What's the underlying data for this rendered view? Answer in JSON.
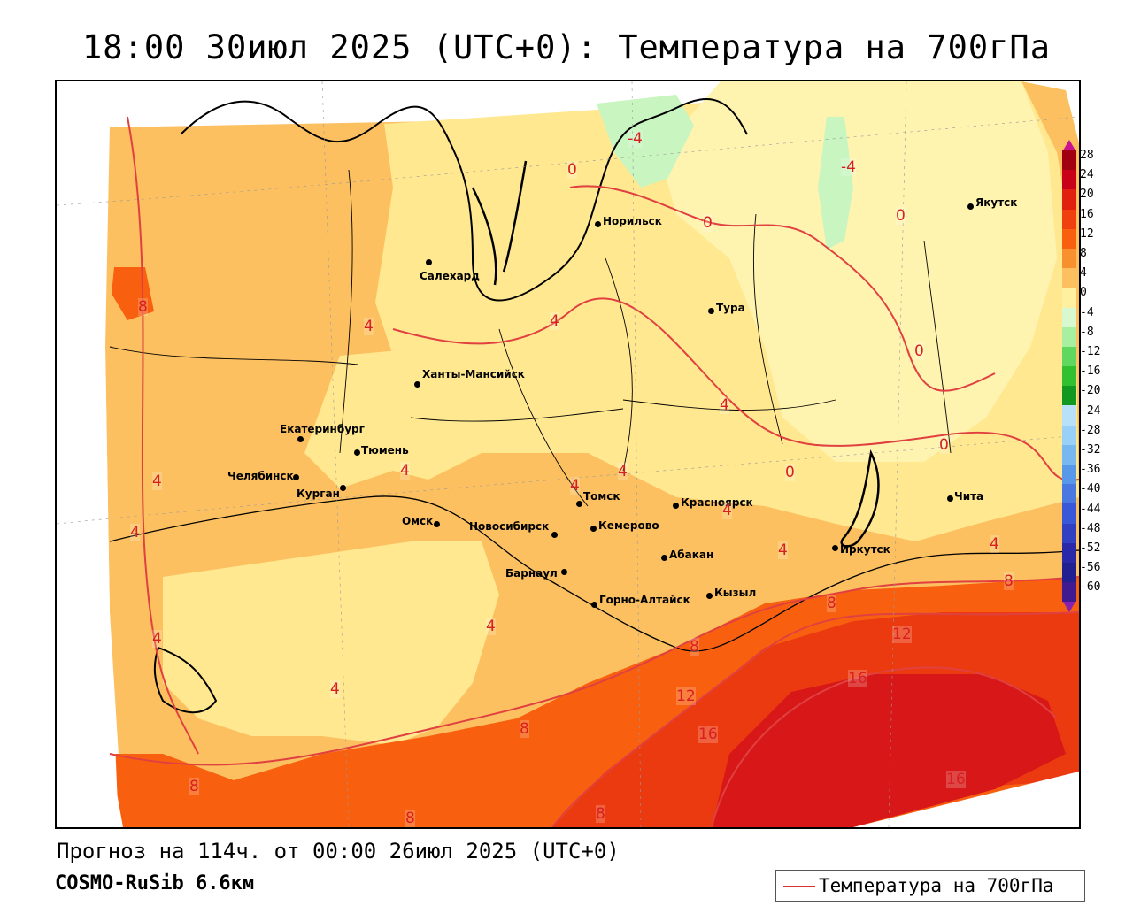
{
  "title": "18:00 30июл 2025 (UTC+0): Температура на 700гПа",
  "footer": {
    "forecast": "Прогноз на 114ч. от 00:00 26июл 2025 (UTC+0)",
    "model": "COSMO-RuSib 6.6км"
  },
  "legend": {
    "label": "Температура на 700гПа",
    "line_color": "#e03030"
  },
  "colorbar": {
    "labels": [
      "28",
      "24",
      "20",
      "16",
      "12",
      "8",
      "4",
      "0",
      "-4",
      "-8",
      "-12",
      "-16",
      "-20",
      "-24",
      "-28",
      "-32",
      "-36",
      "-40",
      "-44",
      "-48",
      "-52",
      "-56",
      "-60"
    ],
    "colors": [
      "#a00010",
      "#c80018",
      "#e22010",
      "#f04010",
      "#f86010",
      "#f89030",
      "#fcc060",
      "#fff0a0",
      "#d8f8d0",
      "#a8f0a0",
      "#60d860",
      "#30c030",
      "#109820",
      "#b8e0f8",
      "#98d0f8",
      "#78b8f0",
      "#5898e8",
      "#4878e0",
      "#3858d8",
      "#3040c0",
      "#2828a8",
      "#202090",
      "#401a90"
    ],
    "top_color": "#cc1090",
    "bottom_color": "#8820b0"
  },
  "cities": [
    {
      "name": "Норильск",
      "marker": "dot"
    },
    {
      "name": "Салехард",
      "marker": "dot"
    },
    {
      "name": "Тура",
      "marker": "dot"
    },
    {
      "name": "Якутск",
      "marker": "dot"
    },
    {
      "name": "Ханты-Мансийск",
      "marker": "dot"
    },
    {
      "name": "Екатеринбург",
      "marker": "dot"
    },
    {
      "name": "Тюмень",
      "marker": "dot"
    },
    {
      "name": "Челябинск",
      "marker": "dot"
    },
    {
      "name": "Курган",
      "marker": "dot"
    },
    {
      "name": "Омск",
      "marker": "dot"
    },
    {
      "name": "Новосибирск",
      "marker": "dot"
    },
    {
      "name": "Томск",
      "marker": "dot"
    },
    {
      "name": "Кемерово",
      "marker": "dot"
    },
    {
      "name": "Красноярск",
      "marker": "dot"
    },
    {
      "name": "Абакан",
      "marker": "dot"
    },
    {
      "name": "Барнаул",
      "marker": "dot"
    },
    {
      "name": "Горно-Алтайск",
      "marker": "dot"
    },
    {
      "name": "Кызыл",
      "marker": "dot"
    },
    {
      "name": "Иркутск",
      "marker": "dot"
    },
    {
      "name": "Чита",
      "marker": "dot"
    }
  ],
  "contour_labels": [
    "-4",
    "-4",
    "0",
    "0",
    "0",
    "0",
    "0",
    "0",
    "4",
    "4",
    "4",
    "4",
    "4",
    "4",
    "4",
    "4",
    "4",
    "4",
    "4",
    "4",
    "4",
    "4",
    "8",
    "8",
    "8",
    "8",
    "8",
    "8",
    "8",
    "8",
    "12",
    "12",
    "16",
    "16",
    "16"
  ]
}
